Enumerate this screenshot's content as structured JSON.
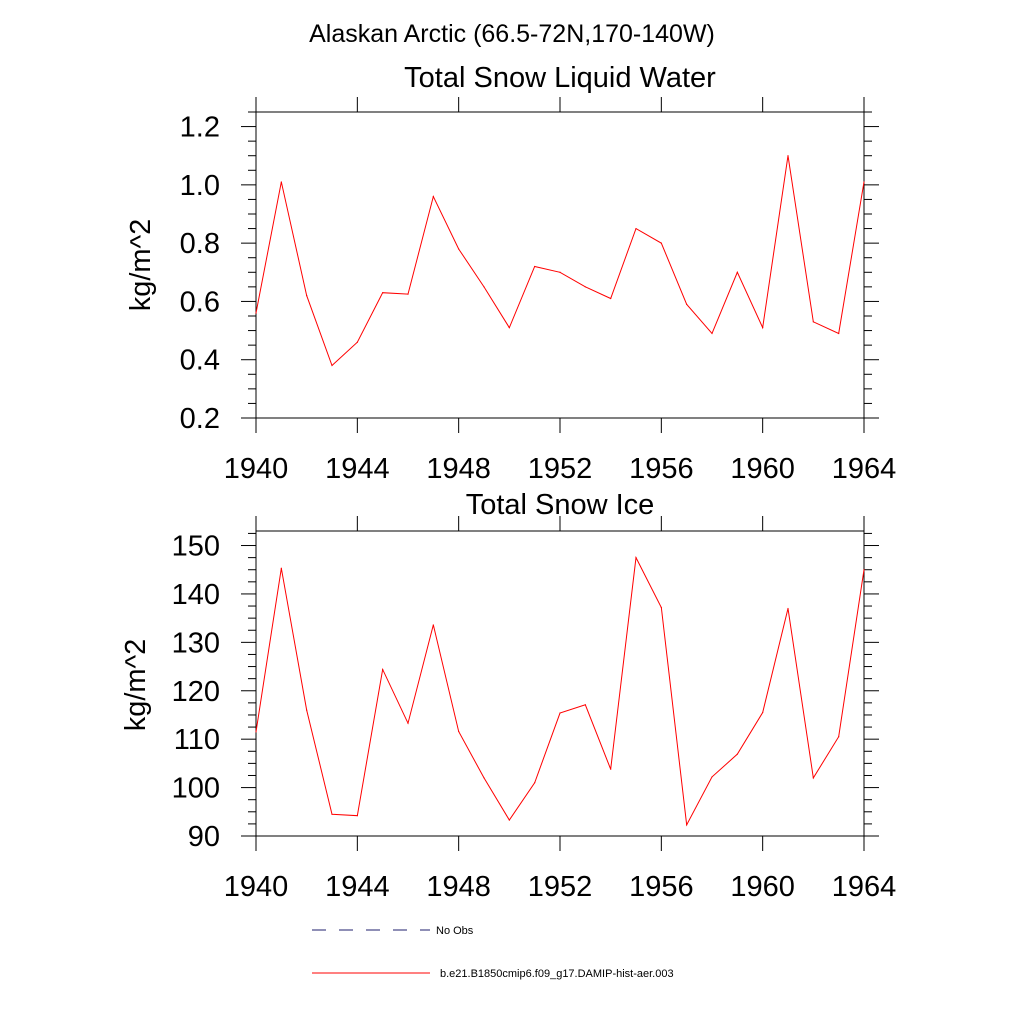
{
  "figure": {
    "suptitle": "Alaskan Arctic (66.5-72N,170-140W)"
  },
  "legend": {
    "entries": [
      {
        "label": "No Obs",
        "color": "#1f1f6e",
        "style": "dashed"
      },
      {
        "label": "b.e21.B1850cmip6.f09_g17.DAMIP-hist-aer.003",
        "color": "#ff0000",
        "style": "solid"
      }
    ]
  },
  "chart_data": [
    {
      "type": "line",
      "title": "Total Snow Liquid Water",
      "xlabel": "",
      "ylabel": "kg/m^2",
      "xlim": [
        1940,
        1964
      ],
      "ylim": [
        0.2,
        1.25
      ],
      "xticks": [
        1940,
        1944,
        1948,
        1952,
        1956,
        1960,
        1964
      ],
      "xtick_labels": [
        "1940",
        "1944",
        "1948",
        "1952",
        "1956",
        "1960",
        "1964"
      ],
      "yticks": [
        0.2,
        0.4,
        0.6,
        0.8,
        1.0,
        1.2
      ],
      "ytick_labels": [
        "0.2",
        "0.4",
        "0.6",
        "0.8",
        "1.0",
        "1.2"
      ],
      "grid": false,
      "x": [
        1940,
        1941,
        1942,
        1943,
        1944,
        1945,
        1946,
        1947,
        1948,
        1949,
        1950,
        1951,
        1952,
        1953,
        1954,
        1955,
        1956,
        1957,
        1958,
        1959,
        1960,
        1961,
        1962,
        1963,
        1964
      ],
      "series": [
        {
          "color": "#ff0000",
          "values": [
            0.56,
            1.01,
            0.62,
            0.38,
            0.46,
            0.63,
            0.625,
            0.96,
            0.78,
            0.65,
            0.51,
            0.72,
            0.7,
            0.65,
            0.61,
            0.85,
            0.8,
            0.59,
            0.49,
            0.7,
            0.51,
            1.1,
            0.53,
            0.49,
            1.01
          ]
        }
      ]
    },
    {
      "type": "line",
      "title": "Total Snow Ice",
      "xlabel": "",
      "ylabel": "kg/m^2",
      "xlim": [
        1940,
        1964
      ],
      "ylim": [
        90,
        153
      ],
      "xticks": [
        1940,
        1944,
        1948,
        1952,
        1956,
        1960,
        1964
      ],
      "xtick_labels": [
        "1940",
        "1944",
        "1948",
        "1952",
        "1956",
        "1960",
        "1964"
      ],
      "yticks": [
        90,
        100,
        110,
        120,
        130,
        140,
        150
      ],
      "ytick_labels": [
        "90",
        "100",
        "110",
        "120",
        "130",
        "140",
        "150"
      ],
      "grid": false,
      "x": [
        1940,
        1941,
        1942,
        1943,
        1944,
        1945,
        1946,
        1947,
        1948,
        1949,
        1950,
        1951,
        1952,
        1953,
        1954,
        1955,
        1956,
        1957,
        1958,
        1959,
        1960,
        1961,
        1962,
        1963,
        1964
      ],
      "series": [
        {
          "color": "#ff0000",
          "values": [
            111.5,
            145.3,
            116.0,
            94.5,
            94.2,
            124.4,
            113.3,
            133.6,
            111.6,
            102.0,
            93.3,
            101.0,
            115.4,
            117.1,
            103.8,
            147.5,
            137.2,
            92.3,
            102.2,
            106.9,
            115.5,
            137.0,
            102.0,
            110.5,
            145.0
          ]
        }
      ]
    }
  ]
}
